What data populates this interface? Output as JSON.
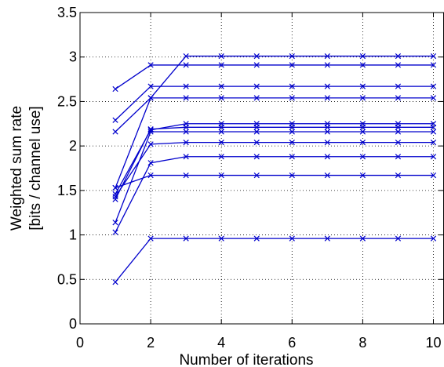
{
  "chart_data": {
    "type": "line",
    "xlabel": "Number of iterations",
    "ylabel": [
      "Weighted sum rate",
      "[bits / channel use]"
    ],
    "xlim": [
      0,
      10.3
    ],
    "ylim": [
      0,
      3.5
    ],
    "x_ticks": [
      0,
      2,
      4,
      6,
      8,
      10
    ],
    "x_tick_labels": [
      "0",
      "2",
      "4",
      "6",
      "8",
      "10"
    ],
    "y_ticks": [
      0,
      0.5,
      1,
      1.5,
      2,
      2.5,
      3,
      3.5
    ],
    "y_tick_labels": [
      "0",
      "0.5",
      "1",
      "1.5",
      "2",
      "2.5",
      "3",
      "3.5"
    ],
    "grid": true,
    "line_color": "#0000cc",
    "marker": "x",
    "x": [
      1,
      2,
      3,
      4,
      5,
      6,
      7,
      8,
      9,
      10
    ],
    "series": [
      {
        "values": [
          1.53,
          2.54,
          3.01,
          3.01,
          3.01,
          3.01,
          3.01,
          3.01,
          3.01,
          3.01
        ]
      },
      {
        "values": [
          2.64,
          2.91,
          2.91,
          2.91,
          2.91,
          2.91,
          2.91,
          2.91,
          2.91,
          2.91
        ]
      },
      {
        "values": [
          2.29,
          2.67,
          2.67,
          2.67,
          2.67,
          2.67,
          2.67,
          2.67,
          2.67,
          2.67
        ]
      },
      {
        "values": [
          2.16,
          2.54,
          2.54,
          2.54,
          2.54,
          2.54,
          2.54,
          2.54,
          2.54,
          2.54
        ]
      },
      {
        "values": [
          1.46,
          2.18,
          2.25,
          2.25,
          2.25,
          2.25,
          2.25,
          2.25,
          2.25,
          2.25
        ]
      },
      {
        "values": [
          1.4,
          2.19,
          2.21,
          2.21,
          2.21,
          2.21,
          2.21,
          2.21,
          2.21,
          2.21
        ]
      },
      {
        "values": [
          1.14,
          2.16,
          2.16,
          2.16,
          2.16,
          2.16,
          2.16,
          2.16,
          2.16,
          2.16
        ]
      },
      {
        "values": [
          1.43,
          2.02,
          2.04,
          2.04,
          2.04,
          2.04,
          2.04,
          2.04,
          2.04,
          2.04
        ]
      },
      {
        "values": [
          1.03,
          1.81,
          1.88,
          1.88,
          1.88,
          1.88,
          1.88,
          1.88,
          1.88,
          1.88
        ]
      },
      {
        "values": [
          1.53,
          1.67,
          1.67,
          1.67,
          1.67,
          1.67,
          1.67,
          1.67,
          1.67,
          1.67
        ]
      },
      {
        "values": [
          0.47,
          0.96,
          0.96,
          0.96,
          0.96,
          0.96,
          0.96,
          0.96,
          0.96,
          0.96
        ]
      }
    ]
  }
}
